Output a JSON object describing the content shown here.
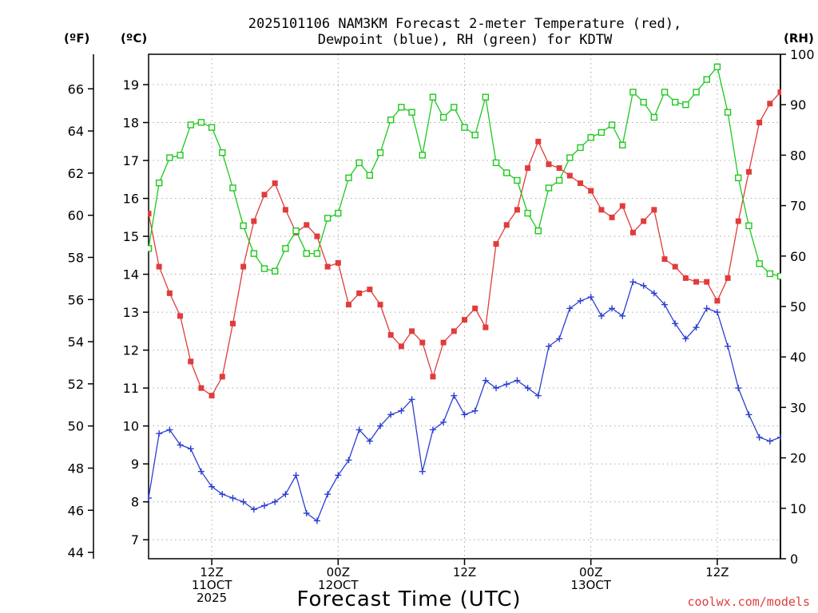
{
  "chart_data": {
    "type": "line",
    "title_lines": [
      "2025101106 NAM3KM Forecast 2-meter Temperature (red),",
      "Dewpoint (blue), RH (green) for KDTW"
    ],
    "xlabel": "Forecast Time (UTC)",
    "credit": "coolwx.com/models",
    "x_unit": "forecast hours from 2025-10-11 06Z",
    "xlim": [
      0,
      60
    ],
    "x_ticks": [
      {
        "x": 6,
        "lines": [
          "12Z",
          "11OCT",
          "2025"
        ]
      },
      {
        "x": 18,
        "lines": [
          "00Z",
          "12OCT"
        ]
      },
      {
        "x": 30,
        "lines": [
          "12Z"
        ]
      },
      {
        "x": 42,
        "lines": [
          "00Z",
          "13OCT"
        ]
      },
      {
        "x": 54,
        "lines": [
          "12Z"
        ]
      }
    ],
    "axes": {
      "fahrenheit": {
        "label": "(ºF)",
        "ticks": [
          44,
          46,
          48,
          50,
          52,
          54,
          56,
          58,
          60,
          62,
          64,
          66
        ]
      },
      "celsius": {
        "label": "(ºC)",
        "ylim": [
          6.5,
          19.8
        ],
        "ticks": [
          7,
          8,
          9,
          10,
          11,
          12,
          13,
          14,
          15,
          16,
          17,
          18,
          19
        ]
      },
      "rh": {
        "label": "(RH)",
        "ylim": [
          0,
          100
        ],
        "ticks": [
          0,
          10,
          20,
          30,
          40,
          50,
          60,
          70,
          80,
          90,
          100
        ]
      }
    },
    "grid": true,
    "series": [
      {
        "name": "2-meter Temperature",
        "color": "#e03c3c",
        "marker": "filled-square",
        "axis": "celsius",
        "x": [
          0,
          1,
          2,
          3,
          4,
          5,
          6,
          7,
          8,
          9,
          10,
          11,
          12,
          13,
          14,
          15,
          16,
          17,
          18,
          19,
          20,
          21,
          22,
          23,
          24,
          25,
          26,
          27,
          28,
          29,
          30,
          31,
          32,
          33,
          34,
          35,
          36,
          37,
          38,
          39,
          40,
          41,
          42,
          43,
          44,
          45,
          46,
          47,
          48,
          49,
          50,
          51,
          52,
          53,
          54,
          55,
          56,
          57,
          58,
          59,
          60
        ],
        "values": [
          15.6,
          14.2,
          13.5,
          12.9,
          11.7,
          11.0,
          10.8,
          11.3,
          12.7,
          14.2,
          15.4,
          16.1,
          16.4,
          15.7,
          15.1,
          15.3,
          15.0,
          14.2,
          14.3,
          13.2,
          13.5,
          13.6,
          13.2,
          12.4,
          12.1,
          12.5,
          12.2,
          11.3,
          12.2,
          12.5,
          12.8,
          13.1,
          12.6,
          14.8,
          15.3,
          15.7,
          16.8,
          17.5,
          16.9,
          16.8,
          16.6,
          16.4,
          16.2,
          15.7,
          15.5,
          15.8,
          15.1,
          15.4,
          15.7,
          14.4,
          14.2,
          13.9,
          13.8,
          13.8,
          13.3,
          13.9,
          15.4,
          16.7,
          18.0,
          18.5,
          18.8
        ]
      },
      {
        "name": "Dewpoint",
        "color": "#2d3fd0",
        "marker": "plus",
        "axis": "celsius",
        "x": [
          0,
          1,
          2,
          3,
          4,
          5,
          6,
          7,
          8,
          9,
          10,
          11,
          12,
          13,
          14,
          15,
          16,
          17,
          18,
          19,
          20,
          21,
          22,
          23,
          24,
          25,
          26,
          27,
          28,
          29,
          30,
          31,
          32,
          33,
          34,
          35,
          36,
          37,
          38,
          39,
          40,
          41,
          42,
          43,
          44,
          45,
          46,
          47,
          48,
          49,
          50,
          51,
          52,
          53,
          54,
          55,
          56,
          57,
          58,
          59,
          60
        ],
        "values": [
          8.1,
          9.8,
          9.9,
          9.5,
          9.4,
          8.8,
          8.4,
          8.2,
          8.1,
          8.0,
          7.8,
          7.9,
          8.0,
          8.2,
          8.7,
          7.7,
          7.5,
          8.2,
          8.7,
          9.1,
          9.9,
          9.6,
          10.0,
          10.3,
          10.4,
          10.7,
          8.8,
          9.9,
          10.1,
          10.8,
          10.3,
          10.4,
          11.2,
          11.0,
          11.1,
          11.2,
          11.0,
          10.8,
          12.1,
          12.3,
          13.1,
          13.3,
          13.4,
          12.9,
          13.1,
          12.9,
          13.8,
          13.7,
          13.5,
          13.2,
          12.7,
          12.3,
          12.6,
          13.1,
          13.0,
          12.1,
          11.0,
          10.3,
          9.7,
          9.6,
          9.7
        ]
      },
      {
        "name": "RH",
        "color": "#1ec81e",
        "marker": "open-square",
        "axis": "rh",
        "x": [
          0,
          1,
          2,
          3,
          4,
          5,
          6,
          7,
          8,
          9,
          10,
          11,
          12,
          13,
          14,
          15,
          16,
          17,
          18,
          19,
          20,
          21,
          22,
          23,
          24,
          25,
          26,
          27,
          28,
          29,
          30,
          31,
          32,
          33,
          34,
          35,
          36,
          37,
          38,
          39,
          40,
          41,
          42,
          43,
          44,
          45,
          46,
          47,
          48,
          49,
          50,
          51,
          52,
          53,
          54,
          55,
          56,
          57,
          58,
          59,
          60
        ],
        "values": [
          61.5,
          74.5,
          79.5,
          80.0,
          86.0,
          86.5,
          85.5,
          80.5,
          73.5,
          66.0,
          60.5,
          57.5,
          57.0,
          61.5,
          65.0,
          60.5,
          60.5,
          67.5,
          68.5,
          75.5,
          78.5,
          76.0,
          80.5,
          87.0,
          89.5,
          88.5,
          80.0,
          91.5,
          87.5,
          89.5,
          85.5,
          84.0,
          91.5,
          78.5,
          76.5,
          75.0,
          68.5,
          65.0,
          73.5,
          75.0,
          79.5,
          81.5,
          83.5,
          84.5,
          86.0,
          82.0,
          92.5,
          90.5,
          87.5,
          92.5,
          90.5,
          90.0,
          92.5,
          95.0,
          97.5,
          88.5,
          75.5,
          66.0,
          58.5,
          56.5,
          56.0
        ]
      }
    ]
  }
}
